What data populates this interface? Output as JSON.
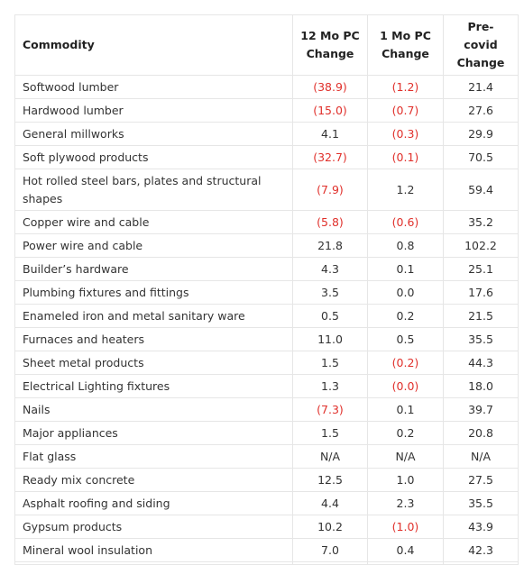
{
  "table": {
    "headers": {
      "commodity": "Commodity",
      "mo12": [
        "12 Mo PC",
        "Change"
      ],
      "mo1": [
        "1 Mo PC",
        "Change"
      ],
      "precovid": [
        "Pre-covid",
        "Change"
      ]
    },
    "rows": [
      {
        "commodity": "Softwood lumber",
        "mo12": "(38.9)",
        "mo1": "(1.2)",
        "precovid": "21.4"
      },
      {
        "commodity": "Hardwood lumber",
        "mo12": "(15.0)",
        "mo1": "(0.7)",
        "precovid": "27.6"
      },
      {
        "commodity": "General millworks",
        "mo12": "4.1",
        "mo1": "(0.3)",
        "precovid": "29.9"
      },
      {
        "commodity": "Soft plywood products",
        "mo12": "(32.7)",
        "mo1": "(0.1)",
        "precovid": "70.5"
      },
      {
        "commodity": "Hot rolled steel bars, plates and structural shapes",
        "mo12": "(7.9)",
        "mo1": "1.2",
        "precovid": "59.4"
      },
      {
        "commodity": "Copper wire and cable",
        "mo12": "(5.8)",
        "mo1": "(0.6)",
        "precovid": "35.2"
      },
      {
        "commodity": "Power wire and cable",
        "mo12": "21.8",
        "mo1": "0.8",
        "precovid": "102.2"
      },
      {
        "commodity": "Builder’s hardware",
        "mo12": "4.3",
        "mo1": "0.1",
        "precovid": "25.1"
      },
      {
        "commodity": "Plumbing fixtures and fittings",
        "mo12": "3.5",
        "mo1": "0.0",
        "precovid": "17.6"
      },
      {
        "commodity": "Enameled iron and metal sanitary ware",
        "mo12": "0.5",
        "mo1": "0.2",
        "precovid": "21.5"
      },
      {
        "commodity": "Furnaces and heaters",
        "mo12": "11.0",
        "mo1": "0.5",
        "precovid": "35.5"
      },
      {
        "commodity": "Sheet metal products",
        "mo12": "1.5",
        "mo1": "(0.2)",
        "precovid": "44.3"
      },
      {
        "commodity": "Electrical Lighting fixtures",
        "mo12": "1.3",
        "mo1": "(0.0)",
        "precovid": "18.0"
      },
      {
        "commodity": "Nails",
        "mo12": "(7.3)",
        "mo1": "0.1",
        "precovid": "39.7"
      },
      {
        "commodity": "Major appliances",
        "mo12": "1.5",
        "mo1": "0.2",
        "precovid": "20.8"
      },
      {
        "commodity": "Flat glass",
        "mo12": "N/A",
        "mo1": "N/A",
        "precovid": "N/A"
      },
      {
        "commodity": "Ready mix concrete",
        "mo12": "12.5",
        "mo1": "1.0",
        "precovid": "27.5"
      },
      {
        "commodity": "Asphalt roofing and siding",
        "mo12": "4.4",
        "mo1": "2.3",
        "precovid": "35.5"
      },
      {
        "commodity": "Gypsum products",
        "mo12": "10.2",
        "mo1": "(1.0)",
        "precovid": "43.9"
      },
      {
        "commodity": "Mineral wool insulation",
        "mo12": "7.0",
        "mo1": "0.4",
        "precovid": "42.3"
      }
    ]
  },
  "colors": {
    "negative": "#e0302b",
    "text": "#333333",
    "border": "#e6e6e6"
  }
}
